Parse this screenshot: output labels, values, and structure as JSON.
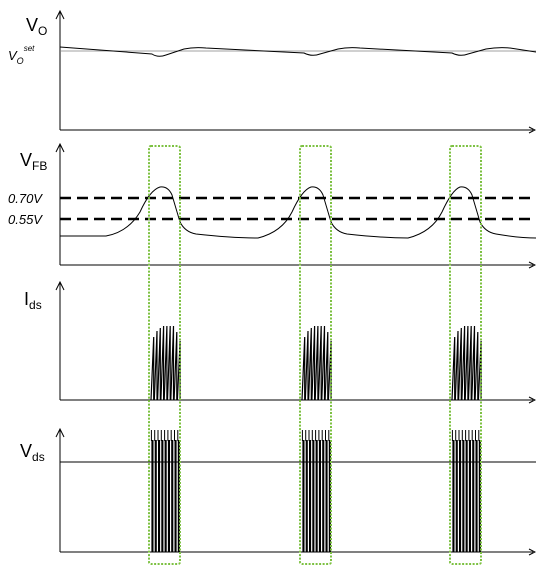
{
  "panels": {
    "vo": {
      "main": "V",
      "sub": "O"
    },
    "vo_set": {
      "main": "V",
      "sub": "O",
      "sup": "set"
    },
    "vfb": {
      "main": "V",
      "sub": "FB"
    },
    "ids": {
      "main": "I",
      "sub": "ds"
    },
    "vds": {
      "main": "V",
      "sub": "ds"
    }
  },
  "thresholds": {
    "upper": "0.70V",
    "lower": "0.55V"
  },
  "colors": {
    "highlight": "#7dc142",
    "trace": "#000000",
    "reference": "#808080"
  },
  "burst_windows": 3
}
